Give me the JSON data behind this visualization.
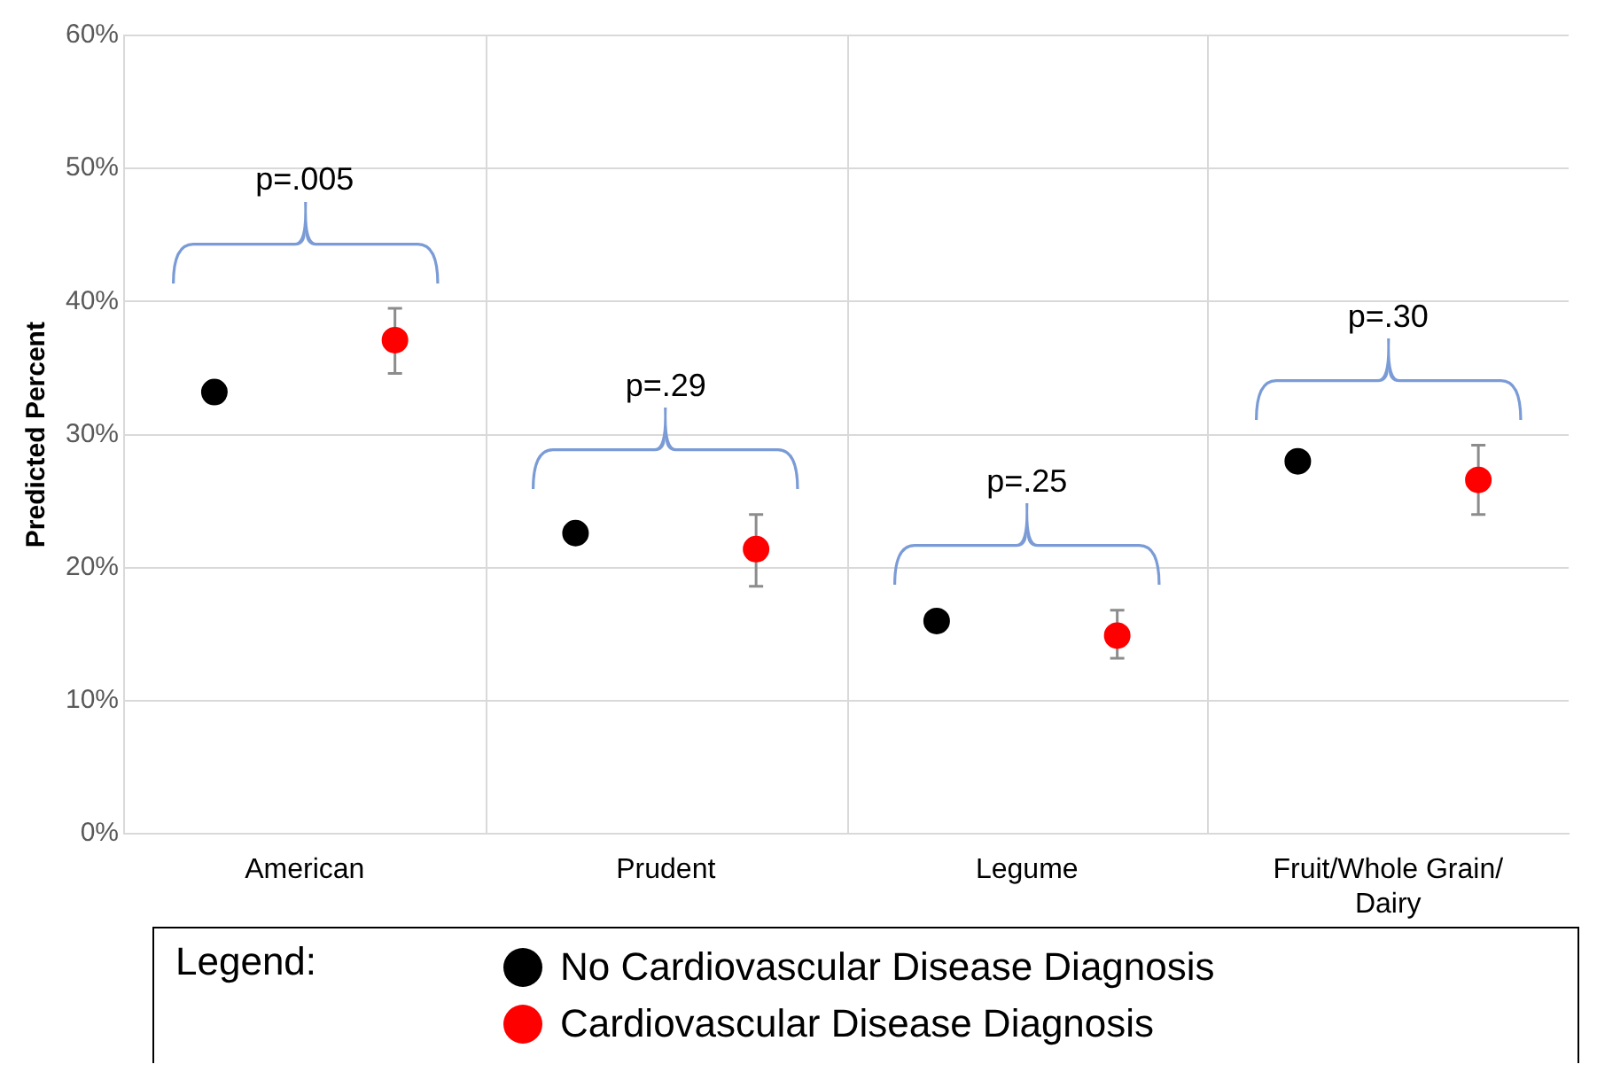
{
  "chart_data": {
    "type": "scatter",
    "ylabel": "Predicted Percent",
    "legend_title": "Legend:",
    "categories": [
      "American",
      "Prudent",
      "Legume",
      "Fruit/Whole Grain/Dairy"
    ],
    "series": [
      {
        "name": "No Cardiovascular Disease Diagnosis",
        "color": "#000000",
        "values": [
          33.2,
          22.6,
          16.0,
          28.0
        ]
      },
      {
        "name": "Cardiovascular Disease Diagnosis",
        "color": "#ff0000",
        "values": [
          37.1,
          21.4,
          14.9,
          26.6
        ],
        "errors": [
          [
            34.6,
            39.5
          ],
          [
            18.6,
            24.0
          ],
          [
            13.2,
            16.8
          ],
          [
            24.0,
            29.2
          ]
        ]
      }
    ],
    "ylim": [
      0,
      60
    ],
    "yticks": [
      {
        "value": 0,
        "label": "0%"
      },
      {
        "value": 10,
        "label": "10%"
      },
      {
        "value": 20,
        "label": "20%"
      },
      {
        "value": 30,
        "label": "30%"
      },
      {
        "value": 40,
        "label": "40%"
      },
      {
        "value": 50,
        "label": "50%"
      },
      {
        "value": 60,
        "label": "60%"
      }
    ],
    "grid": true,
    "legend": "bottom",
    "marker": "circle",
    "annotations": [
      "p=.005",
      "p=.29",
      "p=.25",
      "p=.30"
    ]
  }
}
